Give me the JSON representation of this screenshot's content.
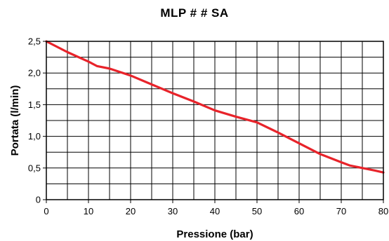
{
  "chart_data": {
    "type": "line",
    "title": "MLP # # SA",
    "xlabel": "Pressione (bar)",
    "ylabel": "Portata (l/min)",
    "xlim": [
      0,
      80
    ],
    "ylim": [
      0,
      2.5
    ],
    "x_ticks": [
      0,
      10,
      20,
      30,
      40,
      50,
      60,
      70,
      80
    ],
    "x_tick_labels": [
      "0",
      "10",
      "20",
      "30",
      "40",
      "50",
      "60",
      "70",
      "80"
    ],
    "y_ticks": [
      0,
      0.5,
      1.0,
      1.5,
      2.0,
      2.5
    ],
    "y_tick_labels": [
      "0",
      "0,5",
      "1,0",
      "1,5",
      "2,0",
      "2,5"
    ],
    "x_grid_step": 5,
    "y_grid_step": 0.25,
    "grid": true,
    "legend": "none",
    "series": [
      {
        "color": "#e8232a",
        "x": [
          0,
          5,
          10,
          12,
          15,
          20,
          25,
          30,
          35,
          40,
          45,
          50,
          55,
          60,
          65,
          70,
          72,
          75,
          78,
          80
        ],
        "y": [
          2.5,
          2.33,
          2.18,
          2.11,
          2.07,
          1.96,
          1.82,
          1.68,
          1.55,
          1.41,
          1.31,
          1.22,
          1.06,
          0.89,
          0.72,
          0.59,
          0.54,
          0.5,
          0.46,
          0.43
        ]
      }
    ]
  }
}
